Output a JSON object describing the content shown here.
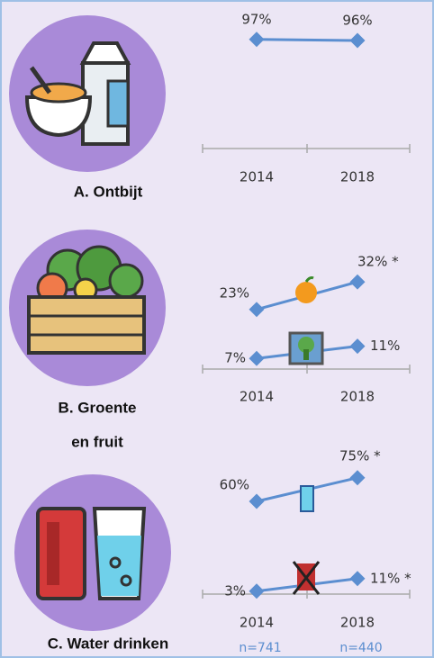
{
  "chart_data": [
    {
      "type": "line",
      "title_lines": [
        "A. Ontbijt"
      ],
      "categories": [
        "2014",
        "2018"
      ],
      "series": [
        {
          "color": "#5b8ed0",
          "values": [
            97,
            96
          ],
          "value_labels": [
            "97%",
            "96%"
          ]
        }
      ],
      "ylim": [
        0,
        100
      ]
    },
    {
      "type": "line",
      "title_lines": [
        "B. Groente",
        "en fruit"
      ],
      "categories": [
        "2014",
        "2018"
      ],
      "series": [
        {
          "color": "#5b8ed0",
          "values": [
            23,
            32
          ],
          "value_labels": [
            "23%",
            "32% *"
          ]
        },
        {
          "color": "#5b8ed0",
          "values": [
            7,
            11
          ],
          "value_labels": [
            "7%",
            "11%"
          ]
        }
      ],
      "ylim": [
        0,
        40
      ]
    },
    {
      "type": "line",
      "title_lines": [
        "C. Water drinken"
      ],
      "categories": [
        "2014",
        "2018"
      ],
      "series": [
        {
          "color": "#5b8ed0",
          "values": [
            60,
            75
          ],
          "value_labels": [
            "60%",
            "75% *"
          ]
        },
        {
          "color": "#5b8ed0",
          "values": [
            3,
            11
          ],
          "value_labels": [
            "3%",
            "11% *"
          ]
        }
      ],
      "ylim": [
        0,
        80
      ],
      "n_labels": [
        "n=741",
        "n=440"
      ]
    }
  ]
}
